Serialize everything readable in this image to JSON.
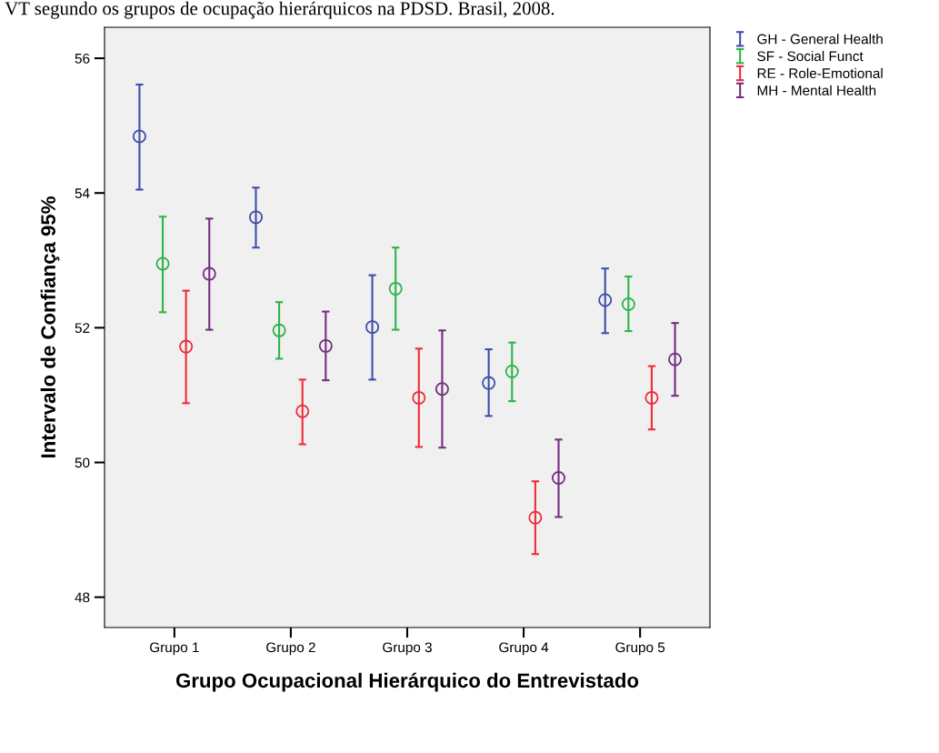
{
  "chart_data": {
    "type": "scatter",
    "title": "VT segundo os grupos de ocupação hierárquicos na PDSD. Brasil, 2008.",
    "xlabel": "Grupo Ocupacional Hierárquico do Entrevistado",
    "ylabel": "Intervalo de Confiança 95%",
    "categories": [
      "Grupo 1",
      "Grupo 2",
      "Grupo 3",
      "Grupo 4",
      "Grupo 5"
    ],
    "ylim": [
      47.55,
      56.46
    ],
    "yticks": [
      48,
      50,
      52,
      54,
      56
    ],
    "grid": false,
    "legend": "top right",
    "marker": "circle",
    "series": [
      {
        "name": "GH - General Health",
        "color": "#3b4fa8",
        "values": [
          54.84,
          53.64,
          52.01,
          51.18,
          52.41
        ],
        "errors": [
          [
            54.05,
            55.61
          ],
          [
            53.19,
            54.08
          ],
          [
            51.23,
            52.78
          ],
          [
            50.69,
            51.68
          ],
          [
            51.92,
            52.88
          ]
        ]
      },
      {
        "name": "SF - Social Funct",
        "color": "#2db34a",
        "values": [
          52.95,
          51.96,
          52.58,
          51.35,
          52.35
        ],
        "errors": [
          [
            52.23,
            53.65
          ],
          [
            51.54,
            52.38
          ],
          [
            51.97,
            53.19
          ],
          [
            50.91,
            51.78
          ],
          [
            51.95,
            52.76
          ]
        ]
      },
      {
        "name": "RE - Role-Emotional",
        "color": "#ee2b3a",
        "values": [
          51.72,
          50.76,
          50.96,
          49.18,
          50.96
        ],
        "errors": [
          [
            50.88,
            52.55
          ],
          [
            50.27,
            51.23
          ],
          [
            50.23,
            51.69
          ],
          [
            48.64,
            49.72
          ],
          [
            50.49,
            51.43
          ]
        ]
      },
      {
        "name": "MH - Mental Health",
        "color": "#722e7d",
        "values": [
          52.8,
          51.73,
          51.09,
          49.77,
          51.53
        ],
        "errors": [
          [
            51.97,
            53.62
          ],
          [
            51.22,
            52.24
          ],
          [
            50.22,
            51.96
          ],
          [
            49.19,
            50.34
          ],
          [
            50.99,
            52.07
          ]
        ]
      }
    ]
  }
}
